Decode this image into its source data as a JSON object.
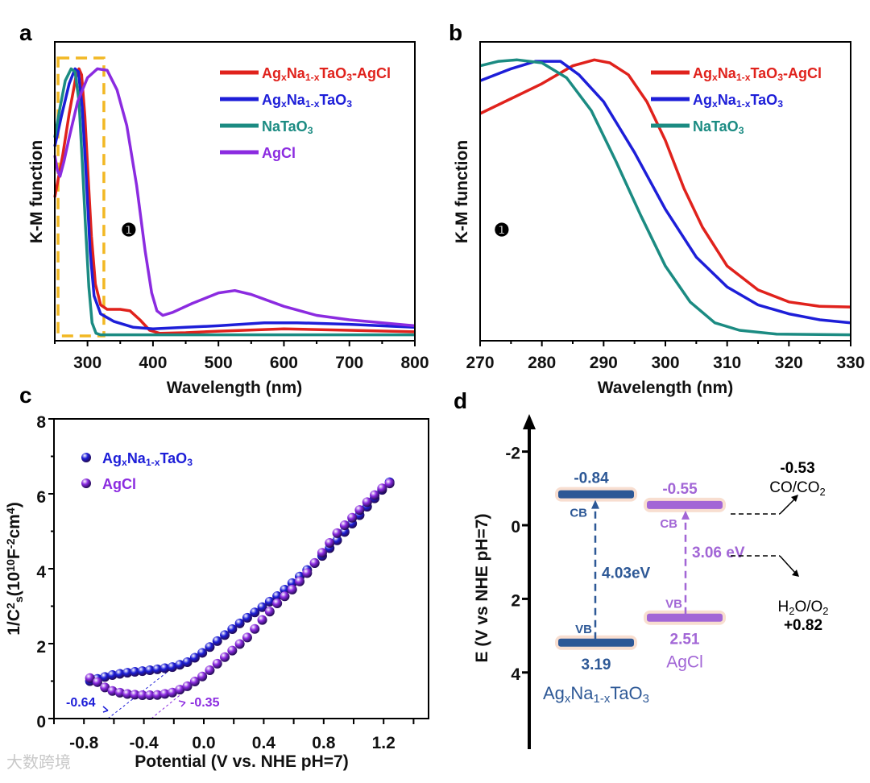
{
  "colors": {
    "red": "#e0221c",
    "blue": "#1d1ed8",
    "teal": "#1b8b82",
    "purple": "#8b2be0",
    "d_blue": "#2d5896",
    "d_purple": "#a266d6",
    "glow": "#f6d6c4",
    "box": "#f2b824"
  },
  "watermark": "大数跨境",
  "chart_data": [
    {
      "panel": "a",
      "type": "line",
      "xlabel": "Wavelength (nm)",
      "ylabel": "K-M function",
      "xlim": [
        250,
        800
      ],
      "ylim": [
        0,
        1
      ],
      "xticks": [
        300,
        400,
        500,
        600,
        700,
        800
      ],
      "marker": "❶",
      "highlight_box": {
        "x": [
          255,
          325
        ],
        "style": "dashed"
      },
      "series": [
        {
          "name": [
            "Ag",
            "_x",
            "Na",
            "_1-x",
            "TaO",
            "_3",
            "-AgCl"
          ],
          "color": "red",
          "points": [
            [
              250,
              0.48
            ],
            [
              262,
              0.62
            ],
            [
              272,
              0.76
            ],
            [
              282,
              0.88
            ],
            [
              287,
              0.91
            ],
            [
              291,
              0.89
            ],
            [
              296,
              0.75
            ],
            [
              301,
              0.55
            ],
            [
              306,
              0.35
            ],
            [
              312,
              0.19
            ],
            [
              320,
              0.12
            ],
            [
              330,
              0.105
            ],
            [
              350,
              0.105
            ],
            [
              365,
              0.1
            ],
            [
              380,
              0.07
            ],
            [
              395,
              0.035
            ],
            [
              410,
              0.025
            ],
            [
              450,
              0.027
            ],
            [
              500,
              0.032
            ],
            [
              600,
              0.04
            ],
            [
              700,
              0.035
            ],
            [
              800,
              0.03
            ]
          ]
        },
        {
          "name": [
            "Ag",
            "_x",
            "Na",
            "_1-x",
            "TaO",
            "_3"
          ],
          "color": "blue",
          "points": [
            [
              250,
              0.65
            ],
            [
              260,
              0.75
            ],
            [
              272,
              0.86
            ],
            [
              281,
              0.91
            ],
            [
              286,
              0.9
            ],
            [
              292,
              0.78
            ],
            [
              298,
              0.55
            ],
            [
              304,
              0.3
            ],
            [
              310,
              0.15
            ],
            [
              320,
              0.09
            ],
            [
              340,
              0.065
            ],
            [
              370,
              0.045
            ],
            [
              400,
              0.04
            ],
            [
              450,
              0.045
            ],
            [
              500,
              0.05
            ],
            [
              570,
              0.06
            ],
            [
              620,
              0.06
            ],
            [
              700,
              0.055
            ],
            [
              800,
              0.045
            ]
          ]
        },
        {
          "name": [
            "NaTaO",
            "_3"
          ],
          "color": "teal",
          "points": [
            [
              250,
              0.68
            ],
            [
              258,
              0.78
            ],
            [
              266,
              0.87
            ],
            [
              275,
              0.91
            ],
            [
              281,
              0.9
            ],
            [
              287,
              0.8
            ],
            [
              292,
              0.6
            ],
            [
              297,
              0.38
            ],
            [
              302,
              0.18
            ],
            [
              307,
              0.06
            ],
            [
              313,
              0.025
            ],
            [
              320,
              0.02
            ],
            [
              800,
              0.02
            ]
          ]
        },
        {
          "name": [
            "AgCl"
          ],
          "color": "purple",
          "points": [
            [
              250,
              0.62
            ],
            [
              254,
              0.57
            ],
            [
              258,
              0.55
            ],
            [
              264,
              0.6
            ],
            [
              272,
              0.68
            ],
            [
              285,
              0.8
            ],
            [
              300,
              0.88
            ],
            [
              315,
              0.91
            ],
            [
              330,
              0.905
            ],
            [
              345,
              0.84
            ],
            [
              360,
              0.72
            ],
            [
              375,
              0.52
            ],
            [
              388,
              0.3
            ],
            [
              398,
              0.16
            ],
            [
              406,
              0.1
            ],
            [
              415,
              0.085
            ],
            [
              430,
              0.095
            ],
            [
              460,
              0.125
            ],
            [
              500,
              0.16
            ],
            [
              525,
              0.168
            ],
            [
              550,
              0.155
            ],
            [
              600,
              0.115
            ],
            [
              650,
              0.085
            ],
            [
              700,
              0.07
            ],
            [
              800,
              0.05
            ]
          ]
        }
      ]
    },
    {
      "panel": "b",
      "type": "line",
      "xlabel": "Wavelength (nm)",
      "ylabel": "K-M function",
      "xlim": [
        270,
        330
      ],
      "ylim": [
        0,
        1
      ],
      "xticks": [
        270,
        280,
        290,
        300,
        310,
        320,
        330
      ],
      "marker": "❶",
      "series": [
        {
          "name": [
            "Ag",
            "_x",
            "Na",
            "_1-x",
            "TaO",
            "_3",
            "-AgCl"
          ],
          "color": "red",
          "points": [
            [
              270,
              0.76
            ],
            [
              275,
              0.81
            ],
            [
              280,
              0.86
            ],
            [
              285,
              0.92
            ],
            [
              288.5,
              0.94
            ],
            [
              291,
              0.93
            ],
            [
              294,
              0.89
            ],
            [
              297,
              0.8
            ],
            [
              300,
              0.67
            ],
            [
              303,
              0.51
            ],
            [
              306,
              0.38
            ],
            [
              310,
              0.25
            ],
            [
              315,
              0.17
            ],
            [
              320,
              0.13
            ],
            [
              325,
              0.115
            ],
            [
              330,
              0.113
            ]
          ]
        },
        {
          "name": [
            "Ag",
            "_x",
            "Na",
            "_1-x",
            "TaO",
            "_3"
          ],
          "color": "blue",
          "points": [
            [
              270,
              0.87
            ],
            [
              275,
              0.91
            ],
            [
              279,
              0.935
            ],
            [
              283,
              0.935
            ],
            [
              286,
              0.89
            ],
            [
              290,
              0.8
            ],
            [
              295,
              0.63
            ],
            [
              300,
              0.44
            ],
            [
              305,
              0.28
            ],
            [
              310,
              0.18
            ],
            [
              315,
              0.12
            ],
            [
              320,
              0.09
            ],
            [
              325,
              0.07
            ],
            [
              330,
              0.06
            ]
          ]
        },
        {
          "name": [
            "NaTaO",
            "_3"
          ],
          "color": "teal",
          "points": [
            [
              270,
              0.92
            ],
            [
              273,
              0.935
            ],
            [
              276,
              0.94
            ],
            [
              280,
              0.93
            ],
            [
              284,
              0.88
            ],
            [
              288,
              0.77
            ],
            [
              292,
              0.6
            ],
            [
              296,
              0.42
            ],
            [
              300,
              0.25
            ],
            [
              304,
              0.13
            ],
            [
              308,
              0.06
            ],
            [
              312,
              0.035
            ],
            [
              318,
              0.022
            ],
            [
              330,
              0.02
            ]
          ]
        }
      ]
    },
    {
      "panel": "c",
      "type": "scatter",
      "xlabel": "Potential (V vs. NHE pH=7)",
      "ylabel": [
        "1/C",
        "^2",
        "_s",
        "(10",
        "^10",
        "F",
        "^-2",
        "cm",
        "^4",
        ")"
      ],
      "xlim": [
        -1.0,
        1.5
      ],
      "ylim": [
        0,
        8
      ],
      "xticks": [
        -0.8,
        -0.4,
        0.0,
        0.4,
        0.8,
        1.2
      ],
      "yticks": [
        0,
        2,
        4,
        6,
        8
      ],
      "series": [
        {
          "name": [
            "Ag",
            "_x",
            "Na",
            "_1-x",
            "TaO",
            "_3"
          ],
          "color": "blue",
          "x_range": [
            -0.76,
            1.25
          ],
          "step": 0.05,
          "points": [
            [
              -0.76,
              1.0
            ],
            [
              -0.7,
              1.07
            ],
            [
              -0.6,
              1.17
            ],
            [
              -0.5,
              1.23
            ],
            [
              -0.4,
              1.27
            ],
            [
              -0.3,
              1.32
            ],
            [
              -0.2,
              1.38
            ],
            [
              -0.1,
              1.52
            ],
            [
              0.0,
              1.78
            ],
            [
              0.1,
              2.1
            ],
            [
              0.2,
              2.42
            ],
            [
              0.3,
              2.72
            ],
            [
              0.4,
              3.0
            ],
            [
              0.5,
              3.3
            ],
            [
              0.6,
              3.65
            ],
            [
              0.7,
              4.0
            ],
            [
              0.8,
              4.38
            ],
            [
              0.9,
              4.8
            ],
            [
              1.0,
              5.25
            ],
            [
              1.1,
              5.7
            ],
            [
              1.2,
              6.15
            ],
            [
              1.25,
              6.35
            ]
          ],
          "intercept": -0.64,
          "intercept_label": "-0.64"
        },
        {
          "name": [
            "AgCl"
          ],
          "color": "purple",
          "x_range": [
            -0.76,
            1.25
          ],
          "step": 0.05,
          "points": [
            [
              -0.76,
              1.08
            ],
            [
              -0.7,
              0.95
            ],
            [
              -0.65,
              0.8
            ],
            [
              -0.6,
              0.72
            ],
            [
              -0.5,
              0.65
            ],
            [
              -0.4,
              0.62
            ],
            [
              -0.3,
              0.63
            ],
            [
              -0.2,
              0.7
            ],
            [
              -0.1,
              0.88
            ],
            [
              0.0,
              1.15
            ],
            [
              0.1,
              1.5
            ],
            [
              0.2,
              1.85
            ],
            [
              0.3,
              2.2
            ],
            [
              0.4,
              2.68
            ],
            [
              0.5,
              3.12
            ],
            [
              0.6,
              3.48
            ],
            [
              0.7,
              3.93
            ],
            [
              0.8,
              4.48
            ],
            [
              0.9,
              5.0
            ],
            [
              1.0,
              5.4
            ],
            [
              1.1,
              5.82
            ],
            [
              1.2,
              6.18
            ],
            [
              1.25,
              6.3
            ]
          ],
          "intercept": -0.35,
          "intercept_label": "-0.35"
        }
      ]
    },
    {
      "panel": "d",
      "type": "diagram",
      "ylabel": "E (V vs NHE pH=7)",
      "ylim": [
        -3,
        6
      ],
      "yticks": [
        "-2",
        "0",
        "2",
        "4"
      ],
      "materials": [
        {
          "name": [
            "Ag",
            "_x",
            "Na",
            "_1-x",
            "TaO",
            "_3"
          ],
          "color": "d_blue",
          "cb": -0.84,
          "vb": 3.19,
          "cb_label": "-0.84",
          "vb_label": "3.19",
          "gap_label": "4.03eV",
          "cb_text": "CB",
          "vb_text": "VB"
        },
        {
          "name": [
            "AgCl"
          ],
          "color": "d_purple",
          "cb": -0.55,
          "vb": 2.51,
          "cb_label": "-0.55",
          "vb_label": "2.51",
          "gap_label": "3.06 eV",
          "cb_text": "CB",
          "vb_text": "VB"
        }
      ],
      "redox": [
        {
          "value_label": "-0.53",
          "couple": [
            "CO/CO",
            "_2"
          ]
        },
        {
          "value_label": "+0.82",
          "couple": [
            "H",
            "_2",
            "O/O",
            "_2"
          ]
        }
      ]
    }
  ],
  "panel_labels": [
    "a",
    "b",
    "c",
    "d"
  ]
}
